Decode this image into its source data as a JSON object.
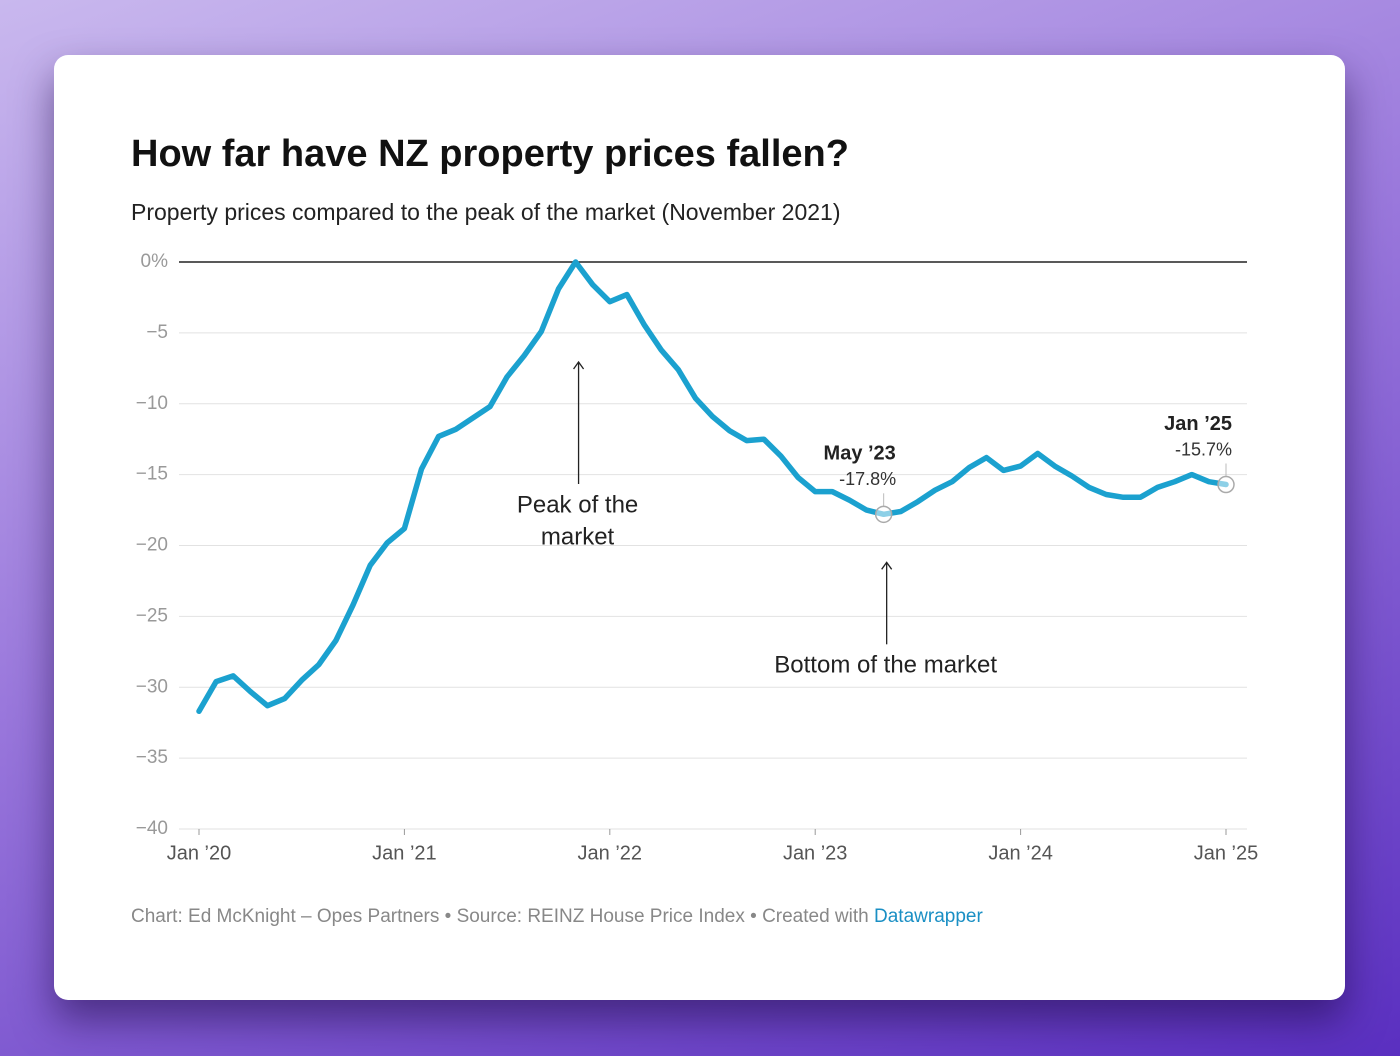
{
  "chart_data": {
    "type": "line",
    "title": "How far have NZ property prices fallen?",
    "subtitle": "Property prices compared to the peak of the market (November 2021)",
    "x": [
      "2020-01",
      "2020-02",
      "2020-03",
      "2020-04",
      "2020-05",
      "2020-06",
      "2020-07",
      "2020-08",
      "2020-09",
      "2020-10",
      "2020-11",
      "2020-12",
      "2021-01",
      "2021-02",
      "2021-03",
      "2021-04",
      "2021-05",
      "2021-06",
      "2021-07",
      "2021-08",
      "2021-09",
      "2021-10",
      "2021-11",
      "2021-12",
      "2022-01",
      "2022-02",
      "2022-03",
      "2022-04",
      "2022-05",
      "2022-06",
      "2022-07",
      "2022-08",
      "2022-09",
      "2022-10",
      "2022-11",
      "2022-12",
      "2023-01",
      "2023-02",
      "2023-03",
      "2023-04",
      "2023-05",
      "2023-06",
      "2023-07",
      "2023-08",
      "2023-09",
      "2023-10",
      "2023-11",
      "2023-12",
      "2024-01",
      "2024-02",
      "2024-03",
      "2024-04",
      "2024-05",
      "2024-06",
      "2024-07",
      "2024-08",
      "2024-09",
      "2024-10",
      "2024-11",
      "2024-12",
      "2025-01"
    ],
    "values": [
      -31.7,
      -29.6,
      -29.2,
      -30.3,
      -31.3,
      -30.8,
      -29.5,
      -28.4,
      -26.7,
      -24.2,
      -21.4,
      -19.8,
      -18.8,
      -14.6,
      -12.3,
      -11.8,
      -11.0,
      -10.2,
      -8.1,
      -6.6,
      -4.9,
      -1.9,
      0,
      -1.6,
      -2.8,
      -2.3,
      -4.4,
      -6.2,
      -7.6,
      -9.6,
      -10.9,
      -11.9,
      -12.6,
      -12.5,
      -13.7,
      -15.2,
      -16.2,
      -16.2,
      -16.8,
      -17.5,
      -17.8,
      -17.6,
      -16.9,
      -16.1,
      -15.5,
      -14.5,
      -13.8,
      -14.7,
      -14.4,
      -13.5,
      -14.4,
      -15.1,
      -15.9,
      -16.4,
      -16.6,
      -16.6,
      -15.9,
      -15.5,
      -15.0,
      -15.5,
      -15.7
    ],
    "color": "#1ba1cf",
    "xlim": [
      "2020-01",
      "2025-01"
    ],
    "xticks": [
      {
        "value": "2020-01",
        "label": "Jan ’20"
      },
      {
        "value": "2021-01",
        "label": "Jan ’21"
      },
      {
        "value": "2022-01",
        "label": "Jan ’22"
      },
      {
        "value": "2023-01",
        "label": "Jan ’23"
      },
      {
        "value": "2024-01",
        "label": "Jan ’24"
      },
      {
        "value": "2025-01",
        "label": "Jan ’25"
      }
    ],
    "ylim": [
      -40,
      0
    ],
    "yticks": [
      {
        "value": 0,
        "label": "0%"
      },
      {
        "value": -5,
        "label": "−5"
      },
      {
        "value": -10,
        "label": "−10"
      },
      {
        "value": -15,
        "label": "−15"
      },
      {
        "value": -20,
        "label": "−20"
      },
      {
        "value": -25,
        "label": "−25"
      },
      {
        "value": -30,
        "label": "−30"
      },
      {
        "value": -35,
        "label": "−35"
      },
      {
        "value": -40,
        "label": "−40"
      }
    ],
    "grid": true,
    "highlights": [
      {
        "x": "2023-05",
        "value": -17.8,
        "label": "May ’23",
        "value_label": "-17.8%"
      },
      {
        "x": "2025-01",
        "value": -15.7,
        "label": "Jan ’25",
        "value_label": "-15.7%"
      }
    ],
    "annotations": [
      {
        "x": "2021-11",
        "lines": [
          "Peak of the",
          "market"
        ]
      },
      {
        "x": "2023-05",
        "lines": [
          "Bottom of the market"
        ]
      }
    ],
    "credit": "Chart: Ed McKnight – Opes Partners • Source: REINZ House Price Index • Created with ",
    "credit_link": "Datawrapper"
  }
}
